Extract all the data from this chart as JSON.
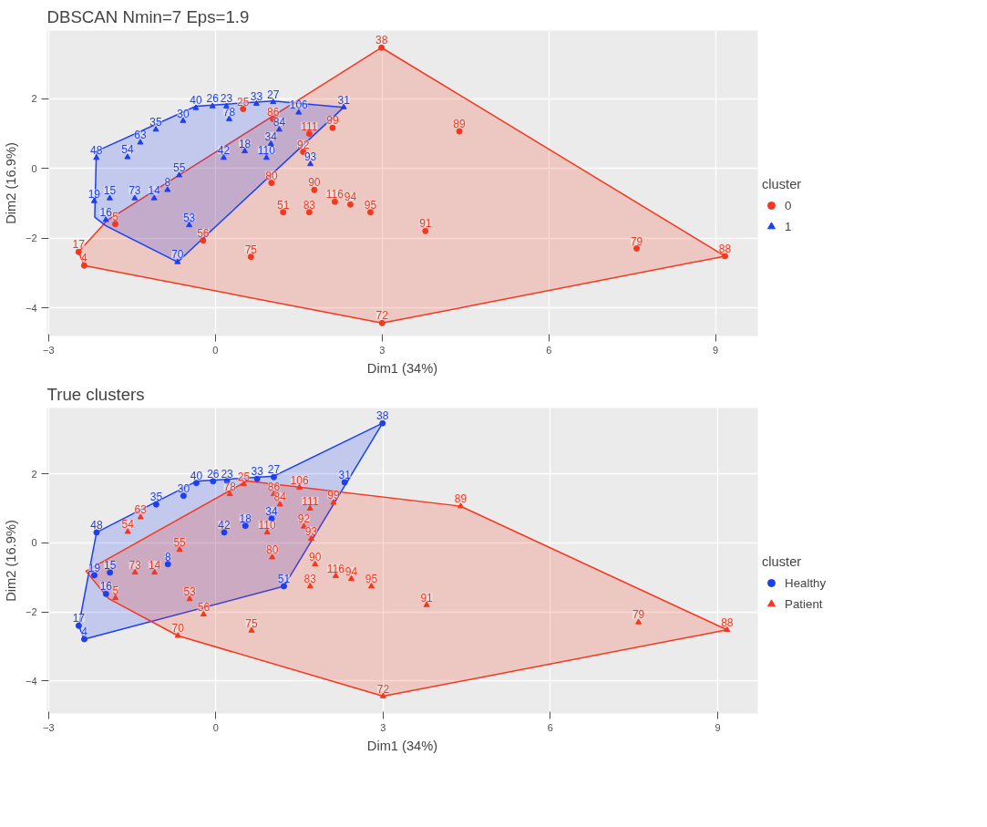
{
  "chart_data": [
    {
      "type": "scatter",
      "title": "DBSCAN Nmin=7 Eps=1.9",
      "xlabel": "Dim1 (34%)",
      "ylabel": "Dim2 (16.9%)",
      "legend_title": "cluster",
      "legend": "right",
      "grid": true,
      "xlim": [
        -3.03,
        9.76
      ],
      "ylim": [
        -4.81,
        3.95
      ],
      "xticks": [
        -3,
        0,
        3,
        6,
        9
      ],
      "yticks": [
        -4,
        -2,
        0,
        2
      ],
      "series": [
        {
          "type": "area",
          "color": "#f5371e",
          "x": [
            -2.46,
            -1.95,
            2.99,
            9.17,
            3.0,
            -2.36
          ],
          "values": [
            -2.4,
            -1.5,
            3.46,
            -2.52,
            -4.44,
            -2.79
          ]
        },
        {
          "type": "area",
          "color": "#1d3ff2",
          "x": [
            -2.17,
            -2.14,
            -0.35,
            1.04,
            2.31,
            -0.68,
            -1.97
          ],
          "values": [
            -1.4,
            0.49,
            1.78,
            1.93,
            1.75,
            -2.69,
            -1.65
          ]
        },
        {
          "name": "0",
          "color": "#f5371e",
          "marker": "circle",
          "x": [
            2.99,
            4.39,
            2.11,
            1.69,
            1.58,
            1.01,
            1.78,
            2.43,
            2.15,
            2.79,
            1.69,
            1.22,
            3.78,
            7.58,
            9.17,
            3.0,
            0.64,
            -0.22,
            -2.46,
            -2.36,
            0.5,
            1.04,
            -1.8
          ],
          "values": [
            3.46,
            1.06,
            1.16,
            0.99,
            0.47,
            -0.42,
            -0.62,
            -1.04,
            -0.96,
            -1.26,
            -1.26,
            -1.26,
            -1.8,
            -2.3,
            -2.52,
            -4.44,
            -2.54,
            -2.07,
            -2.4,
            -2.79,
            1.7,
            1.41,
            -1.6
          ]
        },
        {
          "name": "1",
          "color": "#1d3ff2",
          "marker": "triangle",
          "x": [
            2.31,
            1.5,
            -0.35,
            -0.05,
            0.2,
            0.74,
            1.04,
            -0.58,
            -1.07,
            -1.35,
            -2.14,
            -1.58,
            -0.47,
            -0.68,
            -0.86,
            -1.45,
            -0.65,
            -1.9,
            -1.97,
            -2.18,
            0.92,
            1.0,
            1.15,
            0.53,
            0.15,
            0.25,
            1.71,
            -1.1
          ],
          "values": [
            1.75,
            1.6,
            1.73,
            1.78,
            1.78,
            1.85,
            1.9,
            1.36,
            1.11,
            0.74,
            0.3,
            0.32,
            -1.63,
            -2.69,
            -0.62,
            -0.86,
            -0.2,
            -0.86,
            -1.48,
            -0.94,
            0.3,
            0.7,
            1.11,
            0.49,
            0.3,
            1.41,
            0.12,
            -0.86
          ]
        }
      ],
      "annotations": [
        {
          "text": "38",
          "x": 2.99,
          "y": 3.46
        },
        {
          "text": "89",
          "x": 4.39,
          "y": 1.06
        },
        {
          "text": "99",
          "x": 2.11,
          "y": 1.16
        },
        {
          "text": "111",
          "x": 1.69,
          "y": 0.99
        },
        {
          "text": "92",
          "x": 1.58,
          "y": 0.47
        },
        {
          "text": "80",
          "x": 1.01,
          "y": -0.42
        },
        {
          "text": "90",
          "x": 1.78,
          "y": -0.62
        },
        {
          "text": "94",
          "x": 2.43,
          "y": -1.04
        },
        {
          "text": "116",
          "x": 2.15,
          "y": -0.96
        },
        {
          "text": "95",
          "x": 2.79,
          "y": -1.26
        },
        {
          "text": "83",
          "x": 1.69,
          "y": -1.26
        },
        {
          "text": "51",
          "x": 1.22,
          "y": -1.26
        },
        {
          "text": "91",
          "x": 3.78,
          "y": -1.8
        },
        {
          "text": "79",
          "x": 7.58,
          "y": -2.3
        },
        {
          "text": "88",
          "x": 9.17,
          "y": -2.52
        },
        {
          "text": "72",
          "x": 3.0,
          "y": -4.44
        },
        {
          "text": "75",
          "x": 0.64,
          "y": -2.54
        },
        {
          "text": "56",
          "x": -0.22,
          "y": -2.07
        },
        {
          "text": "17",
          "x": -2.46,
          "y": -2.4
        },
        {
          "text": "4",
          "x": -2.36,
          "y": -2.79
        },
        {
          "text": "25",
          "x": 0.5,
          "y": 1.7
        },
        {
          "text": "86",
          "x": 1.04,
          "y": 1.41
        },
        {
          "text": "5",
          "x": -1.8,
          "y": -1.6
        },
        {
          "text": "31",
          "x": 2.31,
          "y": 1.75
        },
        {
          "text": "106",
          "x": 1.5,
          "y": 1.6
        },
        {
          "text": "40",
          "x": -0.35,
          "y": 1.73
        },
        {
          "text": "26",
          "x": -0.05,
          "y": 1.78
        },
        {
          "text": "23",
          "x": 0.2,
          "y": 1.78
        },
        {
          "text": "33",
          "x": 0.74,
          "y": 1.85
        },
        {
          "text": "27",
          "x": 1.04,
          "y": 1.9
        },
        {
          "text": "30",
          "x": -0.58,
          "y": 1.36
        },
        {
          "text": "35",
          "x": -1.07,
          "y": 1.11
        },
        {
          "text": "63",
          "x": -1.35,
          "y": 0.74
        },
        {
          "text": "48",
          "x": -2.14,
          "y": 0.3
        },
        {
          "text": "54",
          "x": -1.58,
          "y": 0.32
        },
        {
          "text": "53",
          "x": -0.47,
          "y": -1.63
        },
        {
          "text": "70",
          "x": -0.68,
          "y": -2.69
        },
        {
          "text": "8",
          "x": -0.86,
          "y": -0.62
        },
        {
          "text": "73",
          "x": -1.45,
          "y": -0.86
        },
        {
          "text": "55",
          "x": -0.65,
          "y": -0.2
        },
        {
          "text": "15",
          "x": -1.9,
          "y": -0.86
        },
        {
          "text": "16",
          "x": -1.97,
          "y": -1.48
        },
        {
          "text": "19",
          "x": -2.18,
          "y": -0.94
        },
        {
          "text": "110",
          "x": 0.92,
          "y": 0.3
        },
        {
          "text": "34",
          "x": 1.0,
          "y": 0.7
        },
        {
          "text": "84",
          "x": 1.15,
          "y": 1.11
        },
        {
          "text": "18",
          "x": 0.53,
          "y": 0.49
        },
        {
          "text": "42",
          "x": 0.15,
          "y": 0.3
        },
        {
          "text": "78",
          "x": 0.25,
          "y": 1.41
        },
        {
          "text": "93",
          "x": 1.71,
          "y": 0.12
        },
        {
          "text": "14",
          "x": -1.1,
          "y": -0.86
        }
      ]
    },
    {
      "type": "scatter",
      "title": "True clusters",
      "xlabel": "Dim1 (34%)",
      "ylabel": "Dim2 (16.9%)",
      "legend_title": "cluster",
      "legend": "right",
      "grid": true,
      "xlim": [
        -3.03,
        9.72
      ],
      "ylim": [
        -4.94,
        3.9
      ],
      "xticks": [
        -3,
        0,
        3,
        6,
        9
      ],
      "yticks": [
        -4,
        -2,
        0,
        2
      ],
      "series": [
        {
          "type": "area",
          "color": "#1d3ff2",
          "x": [
            -2.46,
            -2.14,
            -0.35,
            1.04,
            2.99,
            1.22,
            -2.36
          ],
          "values": [
            -2.4,
            0.3,
            1.78,
            1.93,
            3.46,
            -1.26,
            -2.79
          ]
        },
        {
          "type": "area",
          "color": "#f5371e",
          "x": [
            -2.33,
            0.56,
            4.39,
            9.17,
            3.0,
            -0.68,
            -1.92
          ],
          "values": [
            -0.82,
            1.79,
            1.06,
            -2.52,
            -4.44,
            -2.69,
            -1.62
          ]
        },
        {
          "name": "Healthy",
          "color": "#1d3ff2",
          "marker": "circle",
          "x": [
            2.99,
            2.31,
            1.04,
            -0.35,
            -0.05,
            0.2,
            0.74,
            -0.58,
            -1.07,
            -2.14,
            -2.46,
            -2.36,
            -1.97,
            -1.9,
            -2.18,
            -0.86,
            1.22,
            1.0,
            0.53,
            0.15
          ],
          "values": [
            3.46,
            1.75,
            1.9,
            1.73,
            1.78,
            1.78,
            1.85,
            1.36,
            1.11,
            0.3,
            -2.4,
            -2.79,
            -1.48,
            -0.86,
            -0.94,
            -0.62,
            -1.26,
            0.7,
            0.49,
            0.3
          ]
        },
        {
          "name": "Patient",
          "color": "#f5371e",
          "marker": "triangle",
          "x": [
            4.39,
            1.5,
            2.11,
            1.69,
            1.58,
            1.71,
            0.92,
            1.01,
            1.78,
            2.43,
            2.15,
            2.79,
            1.69,
            3.78,
            7.58,
            9.17,
            3.0,
            0.64,
            -0.22,
            -0.68,
            -0.47,
            -0.65,
            -1.45,
            -1.1,
            -1.8,
            -1.58,
            -1.35,
            0.5,
            1.04,
            0.25,
            1.15
          ],
          "values": [
            1.06,
            1.6,
            1.16,
            0.99,
            0.47,
            0.12,
            0.3,
            -0.42,
            -0.62,
            -1.04,
            -0.96,
            -1.26,
            -1.26,
            -1.8,
            -2.3,
            -2.52,
            -4.44,
            -2.54,
            -2.07,
            -2.69,
            -1.63,
            -0.2,
            -0.86,
            -0.86,
            -1.6,
            0.32,
            0.74,
            1.7,
            1.41,
            1.41,
            1.11
          ]
        }
      ],
      "annotations": [
        {
          "text": "38",
          "x": 2.99,
          "y": 3.46
        },
        {
          "text": "31",
          "x": 2.31,
          "y": 1.75
        },
        {
          "text": "27",
          "x": 1.04,
          "y": 1.9
        },
        {
          "text": "40",
          "x": -0.35,
          "y": 1.73
        },
        {
          "text": "26",
          "x": -0.05,
          "y": 1.78
        },
        {
          "text": "23",
          "x": 0.2,
          "y": 1.78
        },
        {
          "text": "33",
          "x": 0.74,
          "y": 1.85
        },
        {
          "text": "30",
          "x": -0.58,
          "y": 1.36
        },
        {
          "text": "35",
          "x": -1.07,
          "y": 1.11
        },
        {
          "text": "48",
          "x": -2.14,
          "y": 0.3
        },
        {
          "text": "17",
          "x": -2.46,
          "y": -2.4
        },
        {
          "text": "4",
          "x": -2.36,
          "y": -2.79
        },
        {
          "text": "16",
          "x": -1.97,
          "y": -1.48
        },
        {
          "text": "15",
          "x": -1.9,
          "y": -0.86
        },
        {
          "text": "19",
          "x": -2.18,
          "y": -0.94
        },
        {
          "text": "8",
          "x": -0.86,
          "y": -0.62
        },
        {
          "text": "51",
          "x": 1.22,
          "y": -1.26
        },
        {
          "text": "34",
          "x": 1.0,
          "y": 0.7
        },
        {
          "text": "18",
          "x": 0.53,
          "y": 0.49
        },
        {
          "text": "42",
          "x": 0.15,
          "y": 0.3
        },
        {
          "text": "89",
          "x": 4.39,
          "y": 1.06
        },
        {
          "text": "106",
          "x": 1.5,
          "y": 1.6
        },
        {
          "text": "99",
          "x": 2.11,
          "y": 1.16
        },
        {
          "text": "111",
          "x": 1.69,
          "y": 0.99
        },
        {
          "text": "92",
          "x": 1.58,
          "y": 0.47
        },
        {
          "text": "93",
          "x": 1.71,
          "y": 0.12
        },
        {
          "text": "110",
          "x": 0.92,
          "y": 0.3
        },
        {
          "text": "80",
          "x": 1.01,
          "y": -0.42
        },
        {
          "text": "90",
          "x": 1.78,
          "y": -0.62
        },
        {
          "text": "94",
          "x": 2.43,
          "y": -1.04
        },
        {
          "text": "116",
          "x": 2.15,
          "y": -0.96
        },
        {
          "text": "95",
          "x": 2.79,
          "y": -1.26
        },
        {
          "text": "83",
          "x": 1.69,
          "y": -1.26
        },
        {
          "text": "91",
          "x": 3.78,
          "y": -1.8
        },
        {
          "text": "79",
          "x": 7.58,
          "y": -2.3
        },
        {
          "text": "88",
          "x": 9.17,
          "y": -2.52
        },
        {
          "text": "72",
          "x": 3.0,
          "y": -4.44
        },
        {
          "text": "75",
          "x": 0.64,
          "y": -2.54
        },
        {
          "text": "56",
          "x": -0.22,
          "y": -2.07
        },
        {
          "text": "70",
          "x": -0.68,
          "y": -2.69
        },
        {
          "text": "53",
          "x": -0.47,
          "y": -1.63
        },
        {
          "text": "55",
          "x": -0.65,
          "y": -0.2
        },
        {
          "text": "73",
          "x": -1.45,
          "y": -0.86
        },
        {
          "text": "14",
          "x": -1.1,
          "y": -0.86
        },
        {
          "text": "5",
          "x": -1.8,
          "y": -1.6
        },
        {
          "text": "54",
          "x": -1.58,
          "y": 0.32
        },
        {
          "text": "63",
          "x": -1.35,
          "y": 0.74
        },
        {
          "text": "25",
          "x": 0.5,
          "y": 1.7
        },
        {
          "text": "86",
          "x": 1.04,
          "y": 1.41
        },
        {
          "text": "78",
          "x": 0.25,
          "y": 1.41
        },
        {
          "text": "84",
          "x": 1.15,
          "y": 1.11
        }
      ]
    }
  ]
}
